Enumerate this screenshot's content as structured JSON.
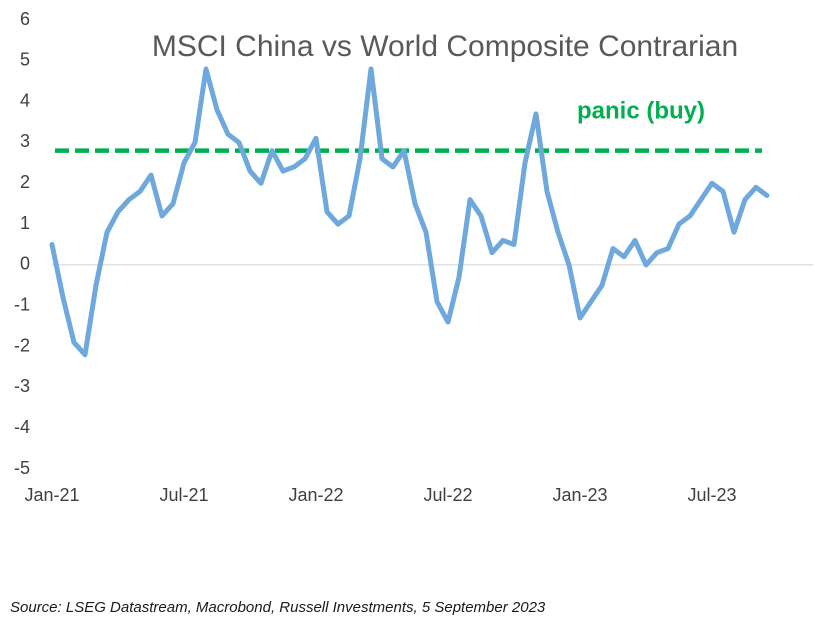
{
  "chart_data": {
    "type": "line",
    "title": "MSCI China vs World Composite Contrarian",
    "categories": [
      "Jan-21",
      null,
      null,
      null,
      null,
      null,
      null,
      null,
      null,
      null,
      null,
      null,
      "Jul-21",
      null,
      null,
      null,
      null,
      null,
      null,
      null,
      null,
      null,
      null,
      null,
      "Jan-22",
      null,
      null,
      null,
      null,
      null,
      null,
      null,
      null,
      null,
      null,
      null,
      "Jul-22",
      null,
      null,
      null,
      null,
      null,
      null,
      null,
      null,
      null,
      null,
      null,
      "Jan-23",
      null,
      null,
      null,
      null,
      null,
      null,
      null,
      null,
      null,
      null,
      null,
      "Jul-23",
      null,
      null,
      null,
      null,
      null
    ],
    "series": [
      {
        "name": "MSCI China vs World Composite Contrarian",
        "color": "#6fa8dc",
        "values": [
          0.5,
          -0.8,
          -1.9,
          -2.2,
          -0.5,
          0.8,
          1.3,
          1.6,
          1.8,
          2.2,
          1.2,
          1.5,
          2.5,
          3.0,
          4.8,
          3.8,
          3.2,
          3.0,
          2.3,
          2.0,
          2.8,
          2.3,
          2.4,
          2.6,
          3.1,
          1.3,
          1.0,
          1.2,
          2.6,
          4.8,
          2.6,
          2.4,
          2.8,
          1.5,
          0.8,
          -0.9,
          -1.4,
          -0.3,
          1.6,
          1.2,
          0.3,
          0.6,
          0.5,
          2.5,
          3.7,
          1.8,
          0.8,
          0.0,
          -1.3,
          -0.9,
          -0.5,
          0.4,
          0.2,
          0.6,
          0.0,
          0.3,
          0.4,
          1.0,
          1.2,
          1.6,
          2.0,
          1.8,
          0.8,
          1.6,
          1.9,
          1.7
        ]
      }
    ],
    "ylim": [
      -5,
      6
    ],
    "yticks": [
      -5,
      -4,
      -3,
      -2,
      -1,
      0,
      1,
      2,
      3,
      4,
      5,
      6
    ],
    "threshold": {
      "value": 2.8,
      "label": "panic (buy)",
      "color": "#00b050"
    },
    "source": "Source: LSEG Datastream, Macrobond, Russell Investments, 5 September 2023"
  }
}
